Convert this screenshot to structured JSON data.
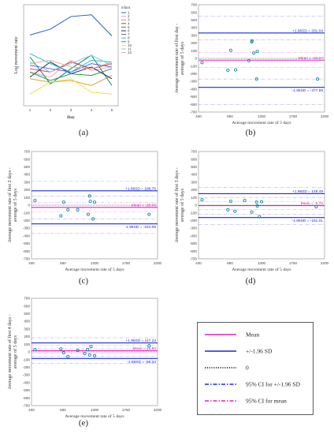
{
  "chart_data": [
    {
      "id": "a",
      "type": "line",
      "caption": "(a)",
      "xlabel": "Day",
      "ylabel": "Log movement rate",
      "x": [
        1,
        2,
        3,
        4,
        5
      ],
      "legend_title": "infant",
      "legend_position": "right-outside",
      "series": [
        {
          "name": "1",
          "color": "#2a5cc8",
          "values": [
            4.2,
            4.55,
            5.3,
            5.4,
            4.15
          ]
        },
        {
          "name": "2",
          "color": "#f2a0c0",
          "values": [
            2.0,
            1.7,
            2.7,
            2.1,
            2.3
          ]
        },
        {
          "name": "3",
          "color": "#e89a2a",
          "values": [
            1.6,
            1.4,
            1.5,
            1.2,
            1.8
          ]
        },
        {
          "name": "4",
          "color": "#0a8a7a",
          "values": [
            2.9,
            1.3,
            2.2,
            3.0,
            1.2
          ]
        },
        {
          "name": "5",
          "color": "#e23a3a",
          "values": [
            2.2,
            2.0,
            2.6,
            2.2,
            2.5
          ]
        },
        {
          "name": "6",
          "color": "#1e2a6e",
          "values": [
            1.7,
            2.6,
            1.9,
            2.3,
            1.6
          ]
        },
        {
          "name": "7",
          "color": "#6a5ad0",
          "values": [
            2.4,
            2.2,
            2.0,
            2.5,
            2.3
          ]
        },
        {
          "name": "8",
          "color": "#2ec0d0",
          "values": [
            3.1,
            2.5,
            2.0,
            2.7,
            2.6
          ]
        },
        {
          "name": "9",
          "color": "#2a9a3a",
          "values": [
            2.0,
            1.5,
            1.9,
            1.8,
            2.2
          ]
        },
        {
          "name": "10",
          "color": "#f0e040",
          "values": [
            0.7,
            1.4,
            1.6,
            0.8,
            0.7
          ]
        },
        {
          "name": "11",
          "color": "#7ad0e0",
          "values": [
            2.6,
            2.0,
            2.5,
            3.0,
            2.4
          ]
        },
        {
          "name": "12",
          "color": "#e0b090",
          "values": [
            2.5,
            2.7,
            2.3,
            2.2,
            2.6
          ]
        }
      ]
    },
    {
      "id": "b",
      "type": "scatter",
      "caption": "(b)",
      "xlabel": "Average movement rate of 5 days",
      "ylabel": "Average movement rate of first day - average of 5 days",
      "xlim": [
        400,
        2200
      ],
      "ylim": [
        -700,
        700
      ],
      "xticks": [
        400,
        850,
        1300,
        1750,
        2200
      ],
      "yticks": [
        -700,
        -600,
        -500,
        -400,
        -300,
        -200,
        -100,
        0,
        100,
        200,
        300,
        400,
        500,
        600,
        700
      ],
      "mean": -23.27,
      "upper": 331.04,
      "lower": -377.59,
      "upper_label": "+1.96SD = 331.04",
      "mean_label": "Mean = -23.27",
      "lower_label": "-1.96SD = -377.59",
      "ci_upper": [
        240,
        550
      ],
      "ci_lower": [
        -600,
        -270
      ],
      "ci_mean": [
        -120,
        75
      ],
      "points": [
        [
          450,
          -55
        ],
        [
          820,
          -155
        ],
        [
          860,
          105
        ],
        [
          930,
          -150
        ],
        [
          1120,
          -30
        ],
        [
          1160,
          215
        ],
        [
          1165,
          230
        ],
        [
          1190,
          70
        ],
        [
          1230,
          -270
        ],
        [
          1240,
          90
        ],
        [
          2100,
          -270
        ]
      ]
    },
    {
      "id": "c",
      "type": "scatter",
      "caption": "(c)",
      "xlabel": "Average movement rate of 5 days",
      "ylabel": "Average movement rate of first 2 days - average of 5 days",
      "xlim": [
        400,
        2200
      ],
      "ylim": [
        -700,
        700
      ],
      "xticks": [
        400,
        850,
        1300,
        1750,
        2200
      ],
      "yticks": [
        -700,
        -600,
        -500,
        -400,
        -300,
        -200,
        -100,
        0,
        100,
        200,
        300,
        400,
        500,
        600,
        700
      ],
      "mean": -28.65,
      "upper": 186.76,
      "lower": -244.06,
      "upper_label": "+1.96SD = 186.76",
      "mean_label": "Mean = -28.65",
      "lower_label": "-1.96SD = -244.06",
      "ci_upper": [
        120,
        310
      ],
      "ci_lower": [
        -370,
        -180
      ],
      "ci_mean": [
        -90,
        35
      ],
      "points": [
        [
          450,
          60
        ],
        [
          820,
          -140
        ],
        [
          860,
          40
        ],
        [
          920,
          -60
        ],
        [
          1060,
          -60
        ],
        [
          1210,
          -120
        ],
        [
          1230,
          120
        ],
        [
          1240,
          50
        ],
        [
          1280,
          -180
        ],
        [
          1300,
          40
        ],
        [
          2080,
          -120
        ]
      ]
    },
    {
      "id": "d",
      "type": "scatter",
      "caption": "(d)",
      "xlabel": "Average movement rate of 5 days",
      "ylabel": "Average movement rate of first 3 days - average of 5 days",
      "xlim": [
        400,
        2200
      ],
      "ylim": [
        -700,
        700
      ],
      "xticks": [
        400,
        850,
        1300,
        1750,
        2200
      ],
      "yticks": [
        -700,
        -600,
        -500,
        -400,
        -300,
        -200,
        -100,
        0,
        100,
        200,
        300,
        400,
        500,
        600,
        700
      ],
      "mean": -5.76,
      "upper": 149.49,
      "lower": -161.01,
      "upper_label": "+1.96SD = 149.49",
      "mean_label": "Mean = -5.76",
      "lower_label": "-1.96SD = -161.01",
      "ci_upper": [
        100,
        230
      ],
      "ci_lower": [
        -250,
        -120
      ],
      "ci_mean": [
        -55,
        45
      ],
      "points": [
        [
          450,
          70
        ],
        [
          820,
          -60
        ],
        [
          860,
          50
        ],
        [
          920,
          -80
        ],
        [
          1060,
          60
        ],
        [
          1160,
          -90
        ],
        [
          1230,
          40
        ],
        [
          1240,
          -10
        ],
        [
          1270,
          -150
        ],
        [
          1300,
          45
        ],
        [
          2080,
          -20
        ]
      ]
    },
    {
      "id": "e",
      "type": "scatter",
      "caption": "(e)",
      "xlabel": "Average movement rate of 5 days",
      "ylabel": "Average movement rate of first 4 days - average of 5 days",
      "xlim": [
        400,
        2200
      ],
      "ylim": [
        -700,
        700
      ],
      "xticks": [
        400,
        850,
        1300,
        1750,
        2200
      ],
      "yticks": [
        -700,
        -600,
        -500,
        -400,
        -300,
        -200,
        -100,
        0,
        100,
        200,
        300,
        400,
        500,
        600,
        700
      ],
      "mean": 15.94,
      "upper": 117.23,
      "lower": -85.34,
      "upper_label": "+1.96SD = 117.23",
      "mean_label": "Mean = 15.94",
      "lower_label": "-1.96SD = -85.34",
      "ci_upper": [
        85,
        185
      ],
      "ci_lower": [
        -150,
        -55
      ],
      "ci_mean": [
        -20,
        50
      ],
      "points": [
        [
          450,
          30
        ],
        [
          820,
          40
        ],
        [
          860,
          -10
        ],
        [
          920,
          -60
        ],
        [
          1060,
          20
        ],
        [
          1160,
          -20
        ],
        [
          1200,
          30
        ],
        [
          1230,
          -40
        ],
        [
          1250,
          70
        ],
        [
          1300,
          -50
        ],
        [
          2080,
          80
        ]
      ]
    }
  ],
  "legend": {
    "items": [
      {
        "label": "Mean",
        "style": "solid",
        "color": "#e020c0"
      },
      {
        "label": "+/-1.96 SD",
        "style": "solid",
        "color": "#1a2ad8"
      },
      {
        "label": "0",
        "style": "dotted",
        "color": "#111111"
      },
      {
        "label": "95% CI for +/-1.96 SD",
        "style": "dashdot",
        "color": "#1a2ad8"
      },
      {
        "label": "95% CI for mean",
        "style": "dashdot",
        "color": "#e020c0"
      }
    ]
  }
}
